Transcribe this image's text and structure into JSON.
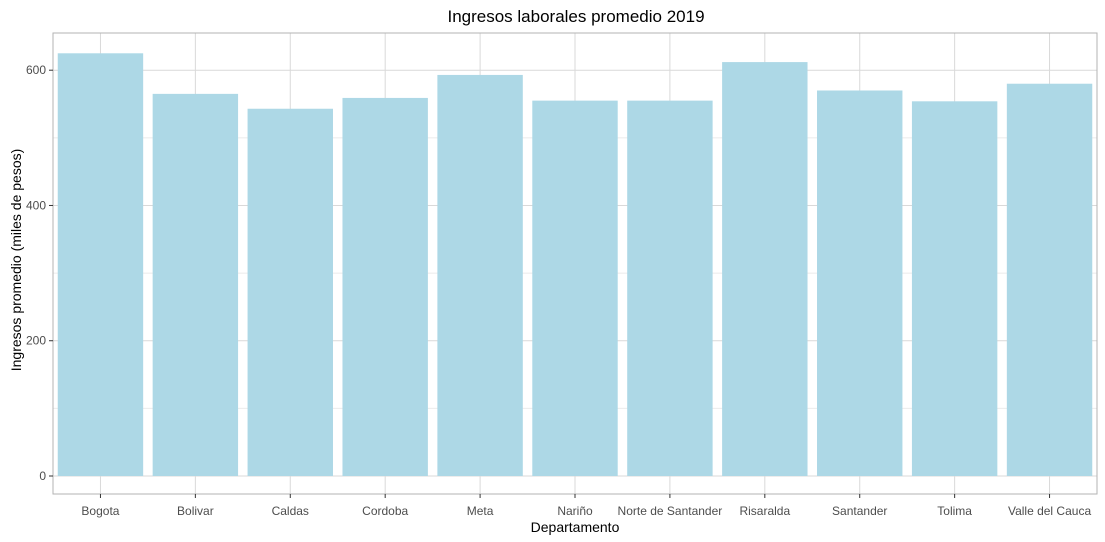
{
  "colors": {
    "bar": "#add8e6",
    "grid_major": "#d9d9d9",
    "grid_minor": "#ebebeb",
    "panel_border": "#b3b3b3",
    "tick_text": "#4d4d4d"
  },
  "chart_data": {
    "type": "bar",
    "title": "Ingresos laborales promedio 2019",
    "xlabel": "Departamento",
    "ylabel": "Ingresos promedio (miles de pesos)",
    "categories": [
      "Bogota",
      "Bolivar",
      "Caldas",
      "Cordoba",
      "Meta",
      "Nariño",
      "Norte de Santander",
      "Risaralda",
      "Santander",
      "Tolima",
      "Valle del Cauca"
    ],
    "values": [
      625,
      565,
      543,
      559,
      593,
      555,
      555,
      612,
      570,
      554,
      580
    ],
    "ylim": [
      0,
      655
    ],
    "yticks": [
      0,
      200,
      400,
      600
    ],
    "grid": true,
    "legend": "none"
  }
}
